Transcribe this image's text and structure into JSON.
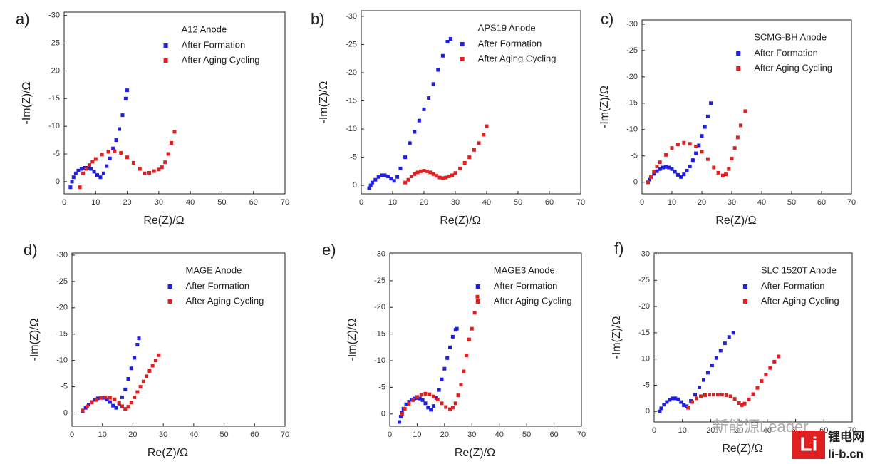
{
  "chart_data": [
    {
      "type": "scatter",
      "panel": "a)",
      "title": "A12 Anode",
      "x_label": "Re(Z)/Ω",
      "y_label": "-Im(Z)/Ω",
      "xlim": [
        0,
        70
      ],
      "ylim": [
        2.2,
        -30.6
      ],
      "xticks": [
        0,
        10,
        20,
        30,
        40,
        50,
        60,
        70
      ],
      "yticks": [
        -30,
        -25,
        -20,
        -15,
        -10,
        -5,
        0
      ],
      "series": [
        {
          "name": "After Formation",
          "color": "#1f1fe0",
          "x": [
            2,
            2.5,
            3,
            3.7,
            4.5,
            5.5,
            6.5,
            7.5,
            8.5,
            9.5,
            10.5,
            11.5,
            12.5,
            13.5,
            14.5,
            15.5,
            16.5,
            17.5,
            18.5,
            19.5,
            20
          ],
          "values": [
            1,
            0,
            -0.8,
            -1.5,
            -2,
            -2.3,
            -2.5,
            -2.5,
            -2.3,
            -1.8,
            -1.2,
            -0.8,
            -1.5,
            -2.8,
            -4.2,
            -6,
            -7.5,
            -9.5,
            -12,
            -15,
            -16.5
          ]
        },
        {
          "name": "After Aging Cycling",
          "color": "#e02020",
          "x": [
            5,
            6,
            7,
            8,
            9,
            10,
            12,
            14,
            16,
            18,
            20,
            22,
            24,
            25.5,
            27,
            28.5,
            30,
            31,
            32,
            33,
            34,
            35
          ],
          "values": [
            1,
            -1.5,
            -2.3,
            -3,
            -3.6,
            -4.1,
            -4.9,
            -5.4,
            -5.5,
            -5.2,
            -4.4,
            -3.4,
            -2.3,
            -1.5,
            -1.6,
            -1.9,
            -2.2,
            -2.6,
            -3.5,
            -5,
            -7,
            -9
          ]
        }
      ]
    },
    {
      "type": "scatter",
      "panel": "b)",
      "title": "APS19 Anode",
      "x_label": "Re(Z)/Ω",
      "y_label": "-Im(Z)/Ω",
      "xlim": [
        0,
        70
      ],
      "ylim": [
        1.5,
        -31
      ],
      "xticks": [
        0,
        10,
        20,
        30,
        40,
        50,
        60,
        70
      ],
      "yticks": [
        -30,
        -25,
        -20,
        -15,
        -10,
        -5,
        0
      ],
      "series": [
        {
          "name": "After Formation",
          "color": "#1f1fe0",
          "x": [
            2.5,
            3,
            3.5,
            4.5,
            5.5,
            6.5,
            7.5,
            8.5,
            9.5,
            10.5,
            11.5,
            12.5,
            14,
            15.5,
            17,
            18.5,
            20,
            21.5,
            23,
            24.5,
            26,
            27.5,
            28.5
          ],
          "values": [
            0.5,
            0,
            -0.5,
            -1,
            -1.5,
            -1.8,
            -1.8,
            -1.6,
            -1.2,
            -0.8,
            -1.5,
            -3,
            -5,
            -7.5,
            -9.5,
            -11.5,
            -13.5,
            -15.5,
            -18,
            -20.5,
            -23,
            -25.5,
            -26
          ]
        },
        {
          "name": "After Aging Cycling",
          "color": "#e02020",
          "x": [
            14,
            15,
            16,
            17,
            18,
            19,
            20,
            21,
            22,
            23,
            24,
            25,
            26,
            27,
            28,
            29,
            30,
            31.5,
            33,
            34.5,
            36,
            37.5,
            39,
            40
          ],
          "values": [
            -0.5,
            -1,
            -1.6,
            -2,
            -2.3,
            -2.5,
            -2.6,
            -2.5,
            -2.3,
            -2,
            -1.7,
            -1.4,
            -1.3,
            -1.4,
            -1.6,
            -1.8,
            -2.2,
            -3,
            -4,
            -5,
            -6.3,
            -7.5,
            -9,
            -10.5
          ]
        }
      ]
    },
    {
      "type": "scatter",
      "panel": "c)",
      "title": "SCMG-BH Anode",
      "x_label": "Re(Z)/Ω",
      "y_label": "-Im(Z)/Ω",
      "xlim": [
        0,
        70
      ],
      "ylim": [
        2.2,
        -30.8
      ],
      "xticks": [
        0,
        10,
        20,
        30,
        40,
        50,
        60,
        70
      ],
      "yticks": [
        -30,
        -25,
        -20,
        -15,
        -10,
        -5,
        0
      ],
      "series": [
        {
          "name": "After Formation",
          "color": "#1f1fe0",
          "x": [
            2,
            2.5,
            3,
            4,
            5,
            6,
            7,
            8,
            9,
            10,
            11,
            12,
            13,
            14,
            15,
            16,
            17,
            18,
            19,
            20,
            21,
            22,
            23
          ],
          "values": [
            0,
            -0.5,
            -1,
            -1.6,
            -2.1,
            -2.5,
            -2.8,
            -2.9,
            -2.8,
            -2.5,
            -2,
            -1.4,
            -1,
            -1.5,
            -2.2,
            -3,
            -4.2,
            -5.5,
            -7,
            -8.8,
            -10.5,
            -12.5,
            -15
          ]
        },
        {
          "name": "After Aging Cycling",
          "color": "#e02020",
          "x": [
            2,
            3,
            4,
            5,
            6,
            8,
            10,
            12,
            14,
            16,
            18,
            20,
            22,
            24,
            25.5,
            27,
            28,
            29,
            30,
            31,
            32,
            33,
            34.5
          ],
          "values": [
            0,
            -1,
            -2,
            -3,
            -3.8,
            -5.2,
            -6.5,
            -7.2,
            -7.5,
            -7.3,
            -6.8,
            -5.8,
            -4.4,
            -2.8,
            -1.8,
            -1.3,
            -1.5,
            -2.5,
            -4.5,
            -6.5,
            -8.5,
            -10.8,
            -13.5
          ]
        }
      ]
    },
    {
      "type": "scatter",
      "panel": "d)",
      "title": "MAGE Anode",
      "x_label": "Re(Z)/Ω",
      "y_label": "-Im(Z)/Ω",
      "xlim": [
        0,
        70
      ],
      "ylim": [
        2.5,
        -30.4
      ],
      "xticks": [
        0,
        10,
        20,
        30,
        40,
        50,
        60,
        70
      ],
      "yticks": [
        -30,
        -25,
        -20,
        -15,
        -10,
        -5,
        0
      ],
      "series": [
        {
          "name": "After Formation",
          "color": "#1f1fe0",
          "x": [
            3.5,
            4.5,
            5.5,
            6.5,
            7.5,
            8.5,
            9.5,
            10.5,
            11.5,
            12.5,
            13.5,
            14.5,
            15.5,
            16.5,
            17.5,
            18.5,
            19.5,
            20.5,
            21.5,
            22
          ],
          "values": [
            -0.3,
            -1,
            -1.6,
            -2.1,
            -2.5,
            -2.8,
            -2.9,
            -2.9,
            -2.6,
            -2.1,
            -1.4,
            -1,
            -1.8,
            -3,
            -4.5,
            -6.5,
            -8.5,
            -10.5,
            -13,
            -14.2
          ]
        },
        {
          "name": "After Aging Cycling",
          "color": "#e02020",
          "x": [
            3.5,
            5,
            6.5,
            8,
            9.5,
            11,
            12.5,
            14,
            15.5,
            16.5,
            17.5,
            18.5,
            19.5,
            20.5,
            21.5,
            22.5,
            23.5,
            24.5,
            25.5,
            26.5,
            27.5,
            28.5
          ],
          "values": [
            -0.5,
            -1.3,
            -2,
            -2.5,
            -2.9,
            -3,
            -2.9,
            -2.6,
            -2,
            -1.3,
            -0.8,
            -1.2,
            -2,
            -3,
            -4,
            -5,
            -6,
            -7,
            -8,
            -9,
            -10,
            -11
          ]
        }
      ]
    },
    {
      "type": "scatter",
      "panel": "e)",
      "title": "MAGE3 Anode",
      "x_label": "Re(Z)/Ω",
      "y_label": "-Im(Z)/Ω",
      "xlim": [
        0,
        70
      ],
      "ylim": [
        2.3,
        -30.2
      ],
      "xticks": [
        0,
        10,
        20,
        30,
        40,
        50,
        60,
        70
      ],
      "yticks": [
        -30,
        -25,
        -20,
        -15,
        -10,
        -5,
        0
      ],
      "series": [
        {
          "name": "After Formation",
          "color": "#1f1fe0",
          "x": [
            3.5,
            4,
            4.5,
            5,
            6,
            7,
            8,
            9,
            10,
            11,
            12,
            13,
            14,
            15,
            16,
            17,
            18,
            19,
            20,
            21,
            22,
            23,
            24,
            24.5
          ],
          "values": [
            1.5,
            0.5,
            -0.3,
            -1,
            -1.8,
            -2.3,
            -2.7,
            -2.9,
            -3,
            -2.9,
            -2.6,
            -2,
            -1.2,
            -0.8,
            -1.5,
            -3,
            -4.5,
            -6.5,
            -8.5,
            -10.5,
            -12.5,
            -14.5,
            -15.8,
            -16
          ]
        },
        {
          "name": "After Aging Cycling",
          "color": "#e02020",
          "x": [
            4.5,
            5.5,
            7,
            8.5,
            10,
            11.5,
            13,
            14.5,
            16,
            17.5,
            19,
            20.5,
            22,
            23,
            24,
            25,
            26,
            27,
            28,
            29,
            30,
            31,
            32
          ],
          "values": [
            0,
            -1,
            -1.9,
            -2.6,
            -3.2,
            -3.6,
            -3.8,
            -3.7,
            -3.3,
            -2.7,
            -2,
            -1.3,
            -0.9,
            -1.2,
            -2,
            -3.5,
            -5.5,
            -8,
            -11,
            -14,
            -16,
            -19,
            -22
          ]
        }
      ]
    },
    {
      "type": "scatter",
      "panel": "f)",
      "title": "SLC 1520T Anode",
      "x_label": "Re(Z)/Ω",
      "y_label": "-Im(Z)/Ω",
      "xlim": [
        0,
        70
      ],
      "ylim": [
        2,
        -30.2
      ],
      "xticks": [
        0,
        10,
        20,
        30,
        40,
        50,
        60,
        70
      ],
      "yticks": [
        -30,
        -25,
        -20,
        -15,
        -10,
        -5,
        0
      ],
      "series": [
        {
          "name": "After Formation",
          "color": "#1f1fe0",
          "x": [
            2,
            2.5,
            3.5,
            4.5,
            5.5,
            6.5,
            7.5,
            8.5,
            9.5,
            10.5,
            11.5,
            13,
            14.5,
            16,
            17.5,
            19,
            20.5,
            22,
            23.5,
            25,
            26.5,
            28
          ],
          "values": [
            0,
            -0.6,
            -1.3,
            -1.8,
            -2.2,
            -2.5,
            -2.5,
            -2.3,
            -1.8,
            -1.2,
            -1,
            -2,
            -3.2,
            -4.6,
            -6,
            -7.4,
            -8.8,
            -10.2,
            -11.6,
            -13,
            -14.2,
            -15
          ]
        },
        {
          "name": "After Aging Cycling",
          "color": "#e02020",
          "x": [
            12,
            13.5,
            15,
            16.5,
            18,
            19.5,
            21,
            22.5,
            24,
            25.5,
            27,
            28.5,
            30,
            31,
            32,
            33.5,
            35,
            36.5,
            38,
            39.5,
            41,
            42.5,
            44
          ],
          "values": [
            -0.7,
            -1.8,
            -2.5,
            -2.9,
            -3.1,
            -3.2,
            -3.2,
            -3.2,
            -3.2,
            -3.1,
            -2.9,
            -2.4,
            -1.6,
            -1.2,
            -1.5,
            -2.3,
            -3.3,
            -4.5,
            -5.8,
            -7,
            -8.3,
            -9.5,
            -10.5
          ]
        }
      ]
    }
  ],
  "watermark": {
    "text": "新能源Leader",
    "logo": "Li",
    "name": "锂电网",
    "url": "li-b.cn"
  }
}
